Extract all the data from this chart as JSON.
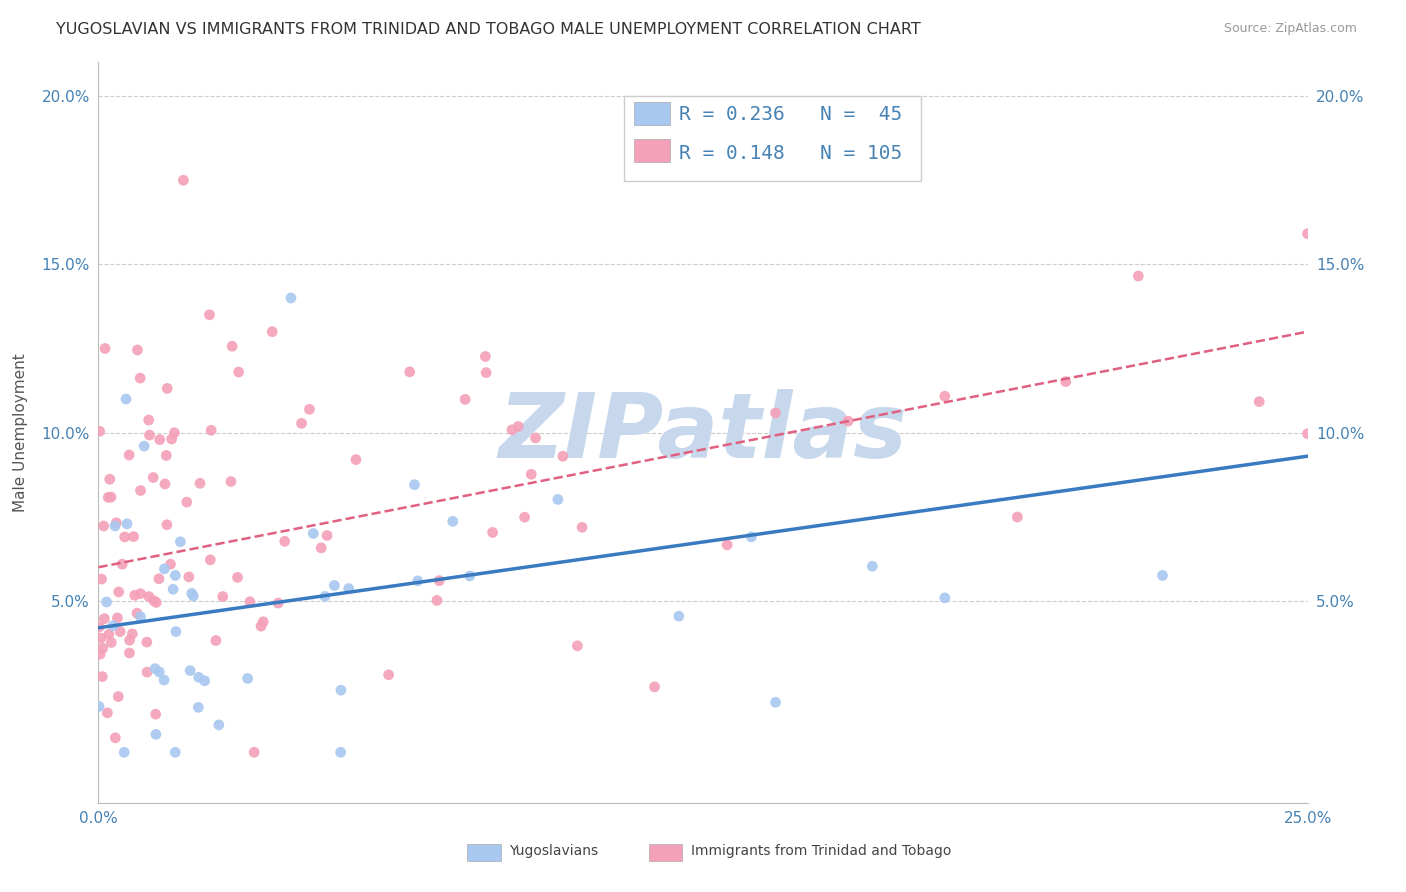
{
  "title": "YUGOSLAVIAN VS IMMIGRANTS FROM TRINIDAD AND TOBAGO MALE UNEMPLOYMENT CORRELATION CHART",
  "source": "Source: ZipAtlas.com",
  "ylabel": "Male Unemployment",
  "xlim": [
    0.0,
    0.25
  ],
  "ylim": [
    -0.01,
    0.21
  ],
  "xticks": [
    0.0,
    0.25
  ],
  "yticks": [
    0.0,
    0.05,
    0.1,
    0.15,
    0.2
  ],
  "xticklabels": [
    "0.0%",
    "25.0%"
  ],
  "yticklabels": [
    "",
    "5.0%",
    "10.0%",
    "15.0%",
    "20.0%"
  ],
  "watermark": "ZIPatlas",
  "yugoslavians": {
    "name": "Yugoslavians",
    "R": "0.236",
    "N": "45",
    "scatter_color": "#A8C8F0",
    "line_color": "#3A7AC0",
    "line_style": "solid",
    "line_width": 2.5,
    "trend_x": [
      0.0,
      0.25
    ],
    "trend_y": [
      0.042,
      0.093
    ]
  },
  "immigrants": {
    "name": "Immigrants from Trinidad and Tobago",
    "R": "0.148",
    "N": "105",
    "scatter_color": "#F4A0B8",
    "line_color": "#E06080",
    "line_style": "dashed",
    "line_width": 1.8,
    "trend_x": [
      0.0,
      0.25
    ],
    "trend_y": [
      0.06,
      0.13
    ]
  },
  "legend_blue_color": "#A8C8F0",
  "legend_pink_color": "#F4A0B8",
  "legend_text_color": "#4682B4",
  "legend_fontsize": 14,
  "grid_color": "#CCCCCC",
  "grid_linestyle": "--",
  "background_color": "#FFFFFF",
  "title_fontsize": 11.5,
  "axis_tick_color": "#4682B4",
  "axis_tick_fontsize": 11,
  "watermark_color": "#C8D8EC",
  "watermark_fontsize": 65,
  "ylabel_color": "#555555",
  "ylabel_fontsize": 11
}
